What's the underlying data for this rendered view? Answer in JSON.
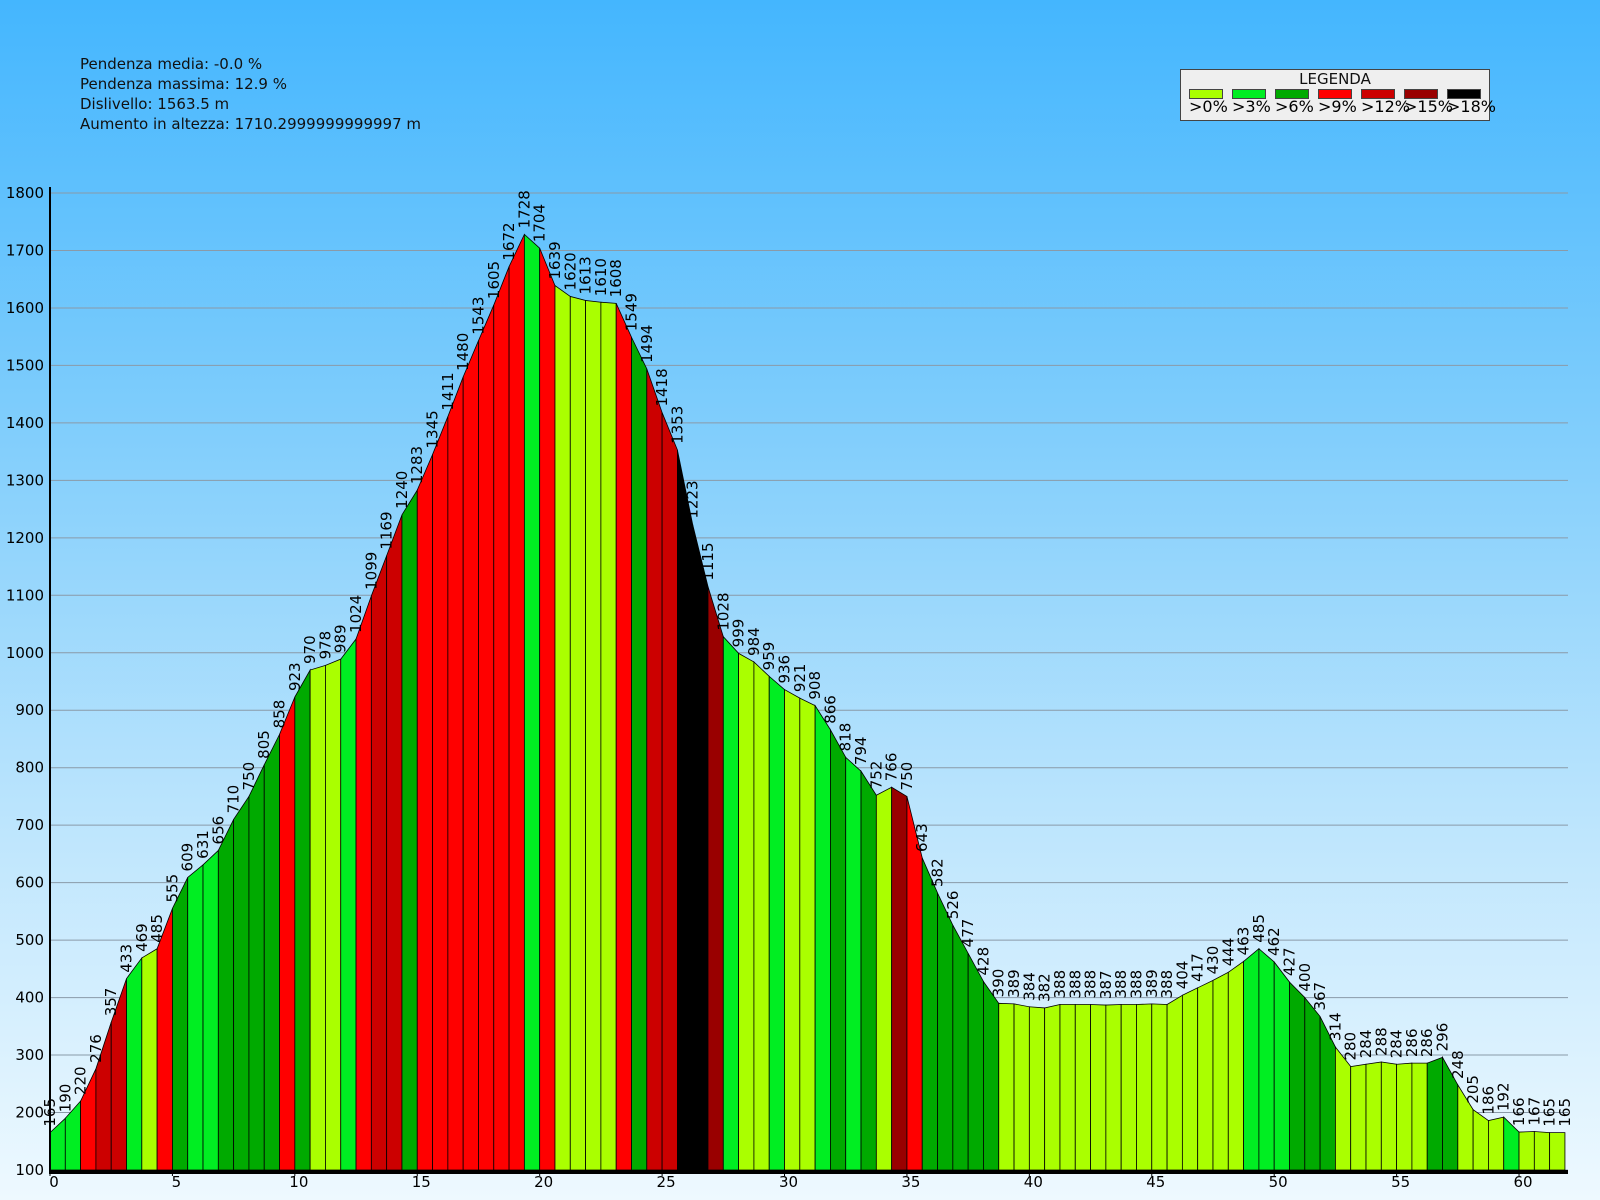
{
  "stats": {
    "avg_slope": "Pendenza media: -0.0 %",
    "max_slope": "Pendenza massima: 12.9 %",
    "drop": "Dislivello: 1563.5 m",
    "gain": "Aumento in altezza: 1710.2999999999997 m"
  },
  "legend": {
    "title": "LEGENDA",
    "items": [
      {
        "label": ">0%",
        "color": "#aaff00"
      },
      {
        "label": ">3%",
        "color": "#00ee22"
      },
      {
        "label": ">6%",
        "color": "#00aa00"
      },
      {
        "label": ">9%",
        "color": "#ff0000"
      },
      {
        "label": ">12%",
        "color": "#cc0000"
      },
      {
        "label": ">15%",
        "color": "#990000"
      },
      {
        "label": ">18%",
        "color": "#000000"
      }
    ]
  },
  "chart_data": {
    "type": "area",
    "xlim": [
      0,
      62
    ],
    "ylim": [
      100,
      1800
    ],
    "xticks": [
      0,
      5,
      10,
      15,
      20,
      25,
      30,
      35,
      40,
      45,
      50,
      55,
      60
    ],
    "yticks": [
      100,
      200,
      300,
      400,
      500,
      600,
      700,
      800,
      900,
      1000,
      1100,
      1200,
      1300,
      1400,
      1500,
      1600,
      1700,
      1800
    ],
    "grid": true,
    "x": [
      0,
      0.625,
      1.25,
      1.875,
      2.5,
      3.125,
      3.75,
      4.375,
      5.0,
      5.625,
      6.25,
      6.875,
      7.5,
      8.125,
      8.75,
      9.375,
      10.0,
      10.625,
      11.25,
      11.875,
      12.5,
      13.125,
      13.75,
      14.375,
      15.0,
      15.625,
      16.25,
      16.875,
      17.5,
      18.125,
      18.75,
      19.375,
      20.0,
      20.625,
      21.25,
      21.875,
      22.5,
      23.125,
      23.75,
      24.375,
      25.0,
      25.625,
      26.25,
      26.875,
      27.5,
      28.125,
      28.75,
      29.375,
      30.0,
      30.625,
      31.25,
      31.875,
      32.5,
      33.125,
      33.75,
      34.375,
      35.0,
      35.625,
      36.25,
      36.875,
      37.5,
      38.125,
      38.75,
      39.375,
      40.0,
      40.625,
      41.25,
      41.875,
      42.5,
      43.125,
      43.75,
      44.375,
      45.0,
      45.625,
      46.25,
      46.875,
      47.5,
      48.125,
      48.75,
      49.375,
      50.0,
      50.625,
      51.25,
      51.875,
      52.5,
      53.125,
      53.75,
      54.375,
      55.0,
      55.625,
      56.25,
      56.875,
      57.5,
      58.125,
      58.75,
      59.375,
      60.0,
      60.625,
      61.25,
      61.875
    ],
    "y": [
      165,
      190,
      220,
      276,
      357,
      433,
      469,
      485,
      555,
      609,
      631,
      656,
      710,
      750,
      805,
      858,
      923,
      970,
      978,
      989,
      1024,
      1099,
      1169,
      1240,
      1283,
      1345,
      1411,
      1480,
      1543,
      1605,
      1672,
      1728,
      1704,
      1639,
      1620,
      1613,
      1610,
      1608,
      1549,
      1494,
      1418,
      1353,
      1223,
      1115,
      1028,
      999,
      984,
      959,
      936,
      921,
      908,
      866,
      818,
      794,
      752,
      766,
      750,
      643,
      582,
      526,
      477,
      428,
      390,
      389,
      384,
      382,
      388,
      388,
      388,
      387,
      388,
      388,
      389,
      388,
      404,
      417,
      430,
      444,
      463,
      485,
      462,
      427,
      400,
      367,
      314,
      280,
      284,
      288,
      284,
      286,
      286,
      296,
      248,
      205,
      186,
      192,
      166,
      167,
      165,
      165
    ],
    "segment_slope_class": [
      1,
      1,
      3,
      4,
      4,
      1,
      0,
      3,
      2,
      1,
      1,
      2,
      2,
      2,
      2,
      3,
      2,
      0,
      0,
      1,
      3,
      4,
      4,
      2,
      3,
      3,
      3,
      3,
      3,
      3,
      3,
      1,
      3,
      0,
      0,
      0,
      0,
      3,
      2,
      4,
      4,
      6,
      6,
      5,
      1,
      0,
      0,
      1,
      0,
      0,
      1,
      2,
      1,
      2,
      0,
      5,
      3,
      2,
      2,
      2,
      2,
      2,
      0,
      0,
      0,
      0,
      0,
      0,
      0,
      0,
      0,
      0,
      0,
      0,
      0,
      0,
      0,
      0,
      1,
      1,
      1,
      2,
      2,
      2,
      0,
      0,
      0,
      0,
      0,
      0,
      2,
      2,
      0,
      0,
      0,
      1,
      0,
      0,
      0
    ]
  }
}
